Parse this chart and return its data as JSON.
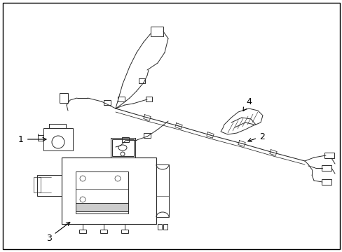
{
  "background_color": "#ffffff",
  "border_color": "#000000",
  "border_linewidth": 1.0,
  "fig_width": 4.89,
  "fig_height": 3.6,
  "dpi": 100,
  "line_color": "#2a2a2a",
  "line_width": 0.7
}
